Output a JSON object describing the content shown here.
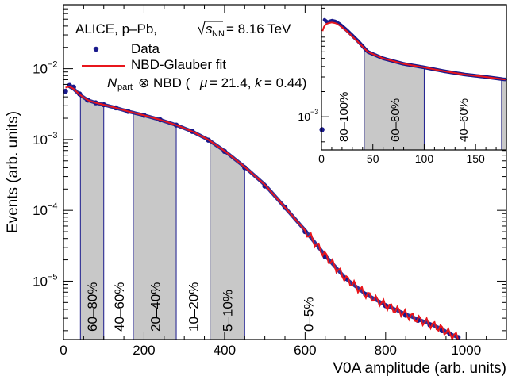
{
  "chart_data": {
    "type": "scatter",
    "title_lines": {
      "experiment": "ALICE, p–Pb,",
      "energy_sqrt": "s",
      "energy_sub": "NN",
      "energy_value": "= 8.16 TeV"
    },
    "xlabel": "V0A amplitude (arb. units)",
    "ylabel": "Events (arb. units)",
    "xlim": [
      0,
      1100
    ],
    "ylim": [
      1.5e-06,
      0.08
    ],
    "yscale": "log",
    "x_ticks": [
      "0",
      "200",
      "400",
      "600",
      "800",
      "1000"
    ],
    "y_ticks": [
      {
        "base": "10",
        "exp": "−5"
      },
      {
        "base": "10",
        "exp": "−4"
      },
      {
        "base": "10",
        "exp": "−3"
      },
      {
        "base": "10",
        "exp": "−2"
      }
    ],
    "legend": {
      "placement": "top-left",
      "data_label": "Data",
      "fit_label": "NBD-Glauber fit",
      "nbd_part": "part",
      "nbd_text": "⊗ NBD (",
      "mu_value": "= 21.4,",
      "k_value": "= 0.44)",
      "N": "N",
      "mu": "μ",
      "k": "k"
    },
    "data_color": "#1a1a8c",
    "fit_color": "#e8161c",
    "band_color": "#c8c8c8",
    "series": [
      {
        "name": "Data",
        "x": [
          5,
          15,
          25,
          40,
          60,
          80,
          100,
          130,
          160,
          200,
          240,
          280,
          320,
          360,
          400,
          450,
          500,
          550,
          600,
          650,
          700,
          750,
          800,
          850,
          880,
          910,
          940,
          960,
          980
        ],
        "y": [
          0.0048,
          0.0058,
          0.0055,
          0.0044,
          0.0036,
          0.0033,
          0.0031,
          0.0028,
          0.0025,
          0.0022,
          0.0019,
          0.0016,
          0.0013,
          0.00098,
          0.00068,
          0.0004,
          0.00022,
          0.00011,
          5e-05,
          2.2e-05,
          1.1e-05,
          6.5e-06,
          4.5e-06,
          3.3e-06,
          2.8e-06,
          2.4e-06,
          2e-06,
          1.8e-06,
          1.6e-06
        ]
      },
      {
        "name": "NBD-Glauber fit",
        "x": [
          5,
          15,
          25,
          40,
          60,
          80,
          100,
          130,
          160,
          200,
          240,
          280,
          320,
          360,
          400,
          450,
          500,
          550,
          600,
          650,
          700,
          750,
          800,
          850,
          880,
          910,
          940,
          960,
          980
        ],
        "y": [
          0.0054,
          0.0056,
          0.0052,
          0.0043,
          0.0036,
          0.0033,
          0.0031,
          0.0028,
          0.0025,
          0.0022,
          0.0019,
          0.0016,
          0.0013,
          0.00099,
          0.00069,
          0.00041,
          0.00023,
          0.00011,
          5.2e-05,
          2.3e-05,
          1.1e-05,
          6.6e-06,
          4.6e-06,
          3.4e-06,
          2.9e-06,
          2.5e-06,
          2.1e-06,
          1.8e-06,
          1.6e-06
        ]
      }
    ],
    "bands": [
      {
        "label": "60–80%",
        "x0": 42,
        "x1": 100,
        "shaded": true
      },
      {
        "label": "40–60%",
        "x0": 100,
        "x1": 175,
        "shaded": false
      },
      {
        "label": "20–40%",
        "x0": 175,
        "x1": 280,
        "shaded": true
      },
      {
        "label": "10–20%",
        "x0": 280,
        "x1": 365,
        "shaded": false
      },
      {
        "label": "5–10%",
        "x0": 365,
        "x1": 450,
        "shaded": true
      },
      {
        "label": "0–5%",
        "x0": 450,
        "x1": 1000,
        "shaded": false
      }
    ],
    "inset": {
      "xlim": [
        0,
        180
      ],
      "ylim": [
        0.0004,
        0.022
      ],
      "x_ticks": [
        "0",
        "50",
        "100",
        "150"
      ],
      "y_tick": {
        "base": "10",
        "exp": "−3"
      },
      "bands": [
        {
          "label": "80–100%",
          "x0": 0,
          "x1": 42,
          "shaded": false
        },
        {
          "label": "60–80%",
          "x0": 42,
          "x1": 100,
          "shaded": true
        },
        {
          "label": "40–60%",
          "x0": 100,
          "x1": 175,
          "shaded": false
        },
        {
          "label": "",
          "x0": 175,
          "x1": 180,
          "shaded": true
        }
      ],
      "series_x": [
        0,
        3,
        6,
        10,
        14,
        18,
        25,
        35,
        45,
        60,
        80,
        100,
        120,
        140,
        160,
        178
      ],
      "data_y": [
        0.0007,
        0.0145,
        0.0135,
        0.0142,
        0.0138,
        0.0128,
        0.0108,
        0.0082,
        0.006,
        0.005,
        0.0043,
        0.0039,
        0.0035,
        0.0032,
        0.003,
        0.0028
      ],
      "fit_y": [
        0.0098,
        0.0125,
        0.0132,
        0.0135,
        0.0132,
        0.0124,
        0.0105,
        0.008,
        0.006,
        0.005,
        0.0043,
        0.0039,
        0.0035,
        0.0032,
        0.003,
        0.0028
      ]
    }
  }
}
